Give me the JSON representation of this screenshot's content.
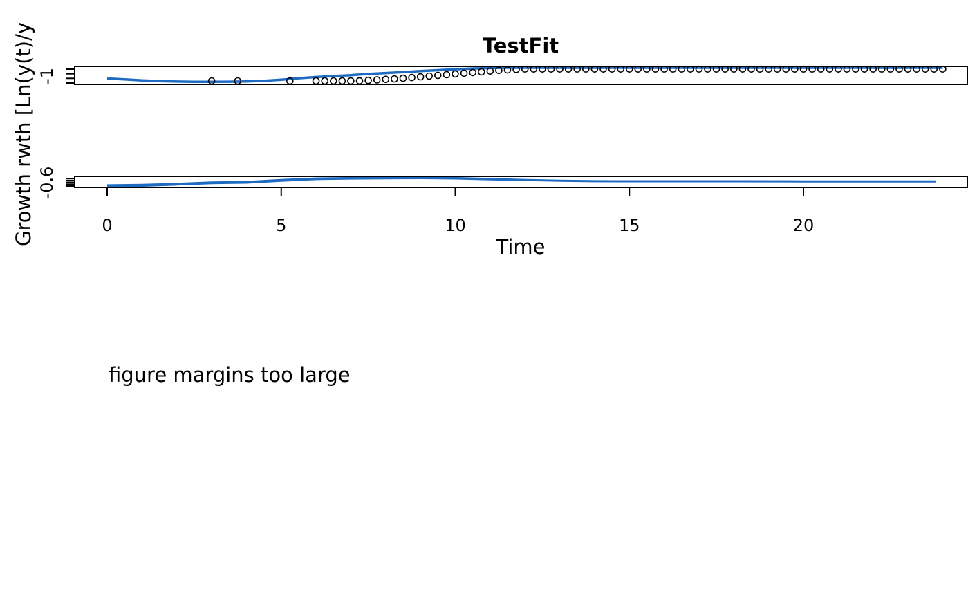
{
  "chart_data": [
    {
      "type": "scatter",
      "title": "TestFit",
      "ylabel_full": "Growth rwth [Ln(y(t)/y",
      "y_tick_label": "-1",
      "ylim": [
        -1.3,
        2.2
      ],
      "x_ticks": [
        0,
        5,
        10,
        15,
        20
      ],
      "xlim": [
        -0.95,
        24.6
      ],
      "points": {
        "x": [
          3.0,
          3.75,
          5.25,
          6.0,
          6.25,
          6.5,
          6.75,
          7.0,
          7.25,
          7.5,
          7.75,
          8.0,
          8.25,
          8.5,
          8.75,
          9.0,
          9.25,
          9.5,
          9.75,
          10.0,
          10.25,
          10.5,
          10.75,
          11.0,
          11.25,
          11.5,
          11.75,
          12.0,
          12.25,
          12.5,
          12.75,
          13.0,
          13.25,
          13.5,
          13.75,
          14.0,
          14.25,
          14.5,
          14.75,
          15.0,
          15.25,
          15.5,
          15.75,
          16.0,
          16.25,
          16.5,
          16.75,
          17.0,
          17.25,
          17.5,
          17.75,
          18.0,
          18.25,
          18.5,
          18.75,
          19.0,
          19.25,
          19.5,
          19.75,
          20.0,
          20.25,
          20.5,
          20.75,
          21.0,
          21.25,
          21.5,
          21.75,
          22.0,
          22.25,
          22.5,
          22.75,
          23.0,
          23.25,
          23.5,
          23.75,
          24.0
        ],
        "y": [
          -1.1,
          -1.1,
          -1.1,
          -0.95,
          -0.95,
          -0.95,
          -0.9,
          -0.85,
          -0.7,
          -0.6,
          -0.5,
          -0.4,
          -0.3,
          -0.15,
          0.0,
          0.15,
          0.3,
          0.45,
          0.6,
          0.75,
          0.9,
          1.05,
          1.2,
          1.35,
          1.5,
          1.6,
          1.7,
          1.8,
          1.8,
          1.8,
          1.8,
          1.8,
          1.8,
          1.8,
          1.8,
          1.8,
          1.8,
          1.8,
          1.8,
          1.8,
          1.8,
          1.8,
          1.8,
          1.8,
          1.8,
          1.8,
          1.8,
          1.8,
          1.8,
          1.8,
          1.8,
          1.8,
          1.8,
          1.8,
          1.8,
          1.8,
          1.8,
          1.8,
          1.8,
          1.8,
          1.8,
          1.8,
          1.8,
          1.8,
          1.8,
          1.8,
          1.8,
          1.8,
          1.8,
          1.8,
          1.8,
          1.8,
          1.8,
          1.8,
          1.8,
          1.8
        ]
      },
      "series": [
        {
          "color": "#1f6bc2",
          "x": [
            0,
            0.5,
            1,
            1.5,
            2,
            2.5,
            3,
            3.5,
            4,
            4.5,
            5,
            5.5,
            6,
            6.5,
            7,
            7.5,
            8,
            8.5,
            9,
            9.5,
            10,
            10.5,
            11,
            11.5,
            12,
            12.5,
            13,
            14,
            15,
            16,
            17,
            18,
            19,
            20,
            21,
            22,
            23,
            24
          ],
          "y": [
            -0.2,
            -0.4,
            -0.6,
            -0.75,
            -0.85,
            -0.9,
            -0.9,
            -0.88,
            -0.82,
            -0.7,
            -0.45,
            -0.15,
            0.1,
            0.3,
            0.5,
            0.75,
            0.95,
            1.15,
            1.35,
            1.55,
            1.75,
            1.9,
            2.0,
            2.05,
            2.05,
            2.05,
            2.05,
            2.05,
            2.05,
            2.05,
            2.05,
            2.05,
            2.05,
            2.05,
            2.05,
            2.05,
            2.05,
            2.05
          ]
        }
      ]
    },
    {
      "type": "line",
      "y_tick_label": "-0.6",
      "ylim": [
        -0.75,
        0.25
      ],
      "x_ticks": [
        0,
        5,
        10,
        15,
        20
      ],
      "xlabel": "Time",
      "xlim": [
        -0.95,
        24.6
      ],
      "series": [
        {
          "color": "#1f6bc2",
          "x": [
            0,
            1,
            2,
            3,
            4,
            5,
            6,
            7,
            8,
            9,
            10,
            11,
            12,
            13,
            14,
            15,
            16,
            18,
            20,
            22,
            23.8
          ],
          "y": [
            -0.6,
            -0.55,
            -0.45,
            -0.3,
            -0.25,
            -0.05,
            0.1,
            0.15,
            0.17,
            0.18,
            0.15,
            0.05,
            -0.05,
            -0.12,
            -0.17,
            -0.18,
            -0.18,
            -0.18,
            -0.19,
            -0.19,
            -0.19
          ]
        },
        {
          "color": "#1f6bc2",
          "x": [
            0,
            1,
            2,
            3,
            4,
            5,
            6,
            7,
            8,
            9,
            10,
            11,
            12
          ],
          "y": [
            -0.7,
            -0.65,
            -0.52,
            -0.38,
            -0.32,
            -0.12,
            0.04,
            0.1,
            0.12,
            0.14,
            0.11,
            0.02,
            -0.06
          ]
        }
      ]
    }
  ],
  "error_message": "figure margins too large"
}
